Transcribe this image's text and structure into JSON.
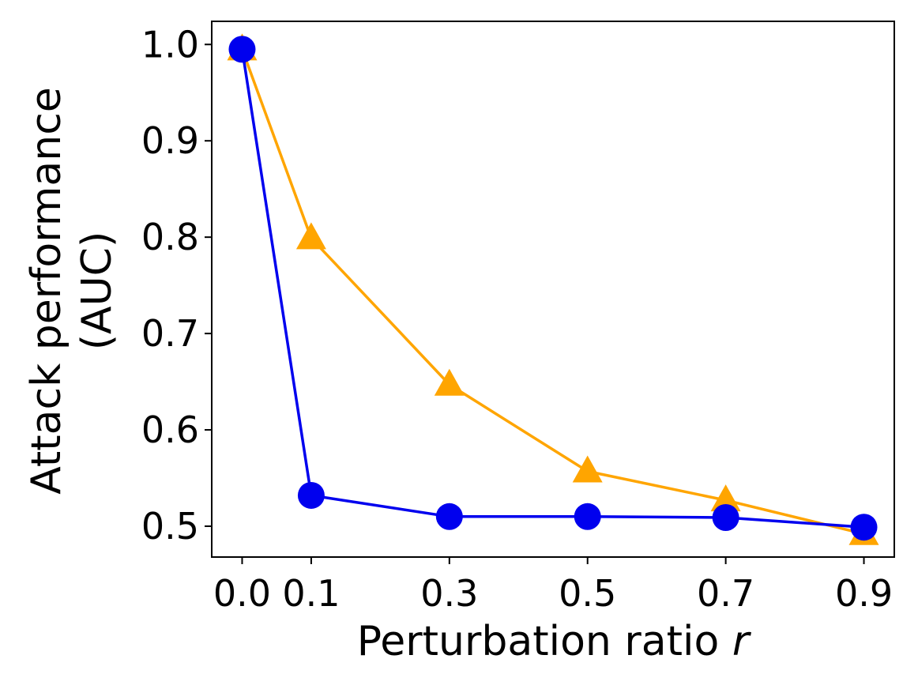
{
  "chart_data": {
    "type": "line",
    "xlabel": "Perturbation ratio",
    "xlabel_var": "r",
    "ylabel_lines": [
      "Attack performance",
      "(AUC)"
    ],
    "x": [
      0.0,
      0.1,
      0.3,
      0.5,
      0.7,
      0.9
    ],
    "x_tick_labels": [
      "0.0",
      "0.1",
      "0.3",
      "0.5",
      "0.7",
      "0.9"
    ],
    "y_ticks": [
      0.5,
      0.6,
      0.7,
      0.8,
      0.9,
      1.0
    ],
    "y_tick_labels": [
      "0.5",
      "0.6",
      "0.7",
      "0.8",
      "0.9",
      "1.0"
    ],
    "xlim": [
      -0.044,
      0.944
    ],
    "ylim": [
      0.468,
      1.024
    ],
    "grid": false,
    "series": [
      {
        "color": "#FFA500",
        "marker": "triangle",
        "values": [
          0.995,
          0.799,
          0.647,
          0.557,
          0.527,
          0.492
        ]
      },
      {
        "color": "#0000EE",
        "marker": "circle",
        "values": [
          0.995,
          0.532,
          0.51,
          0.51,
          0.509,
          0.499
        ]
      }
    ]
  }
}
